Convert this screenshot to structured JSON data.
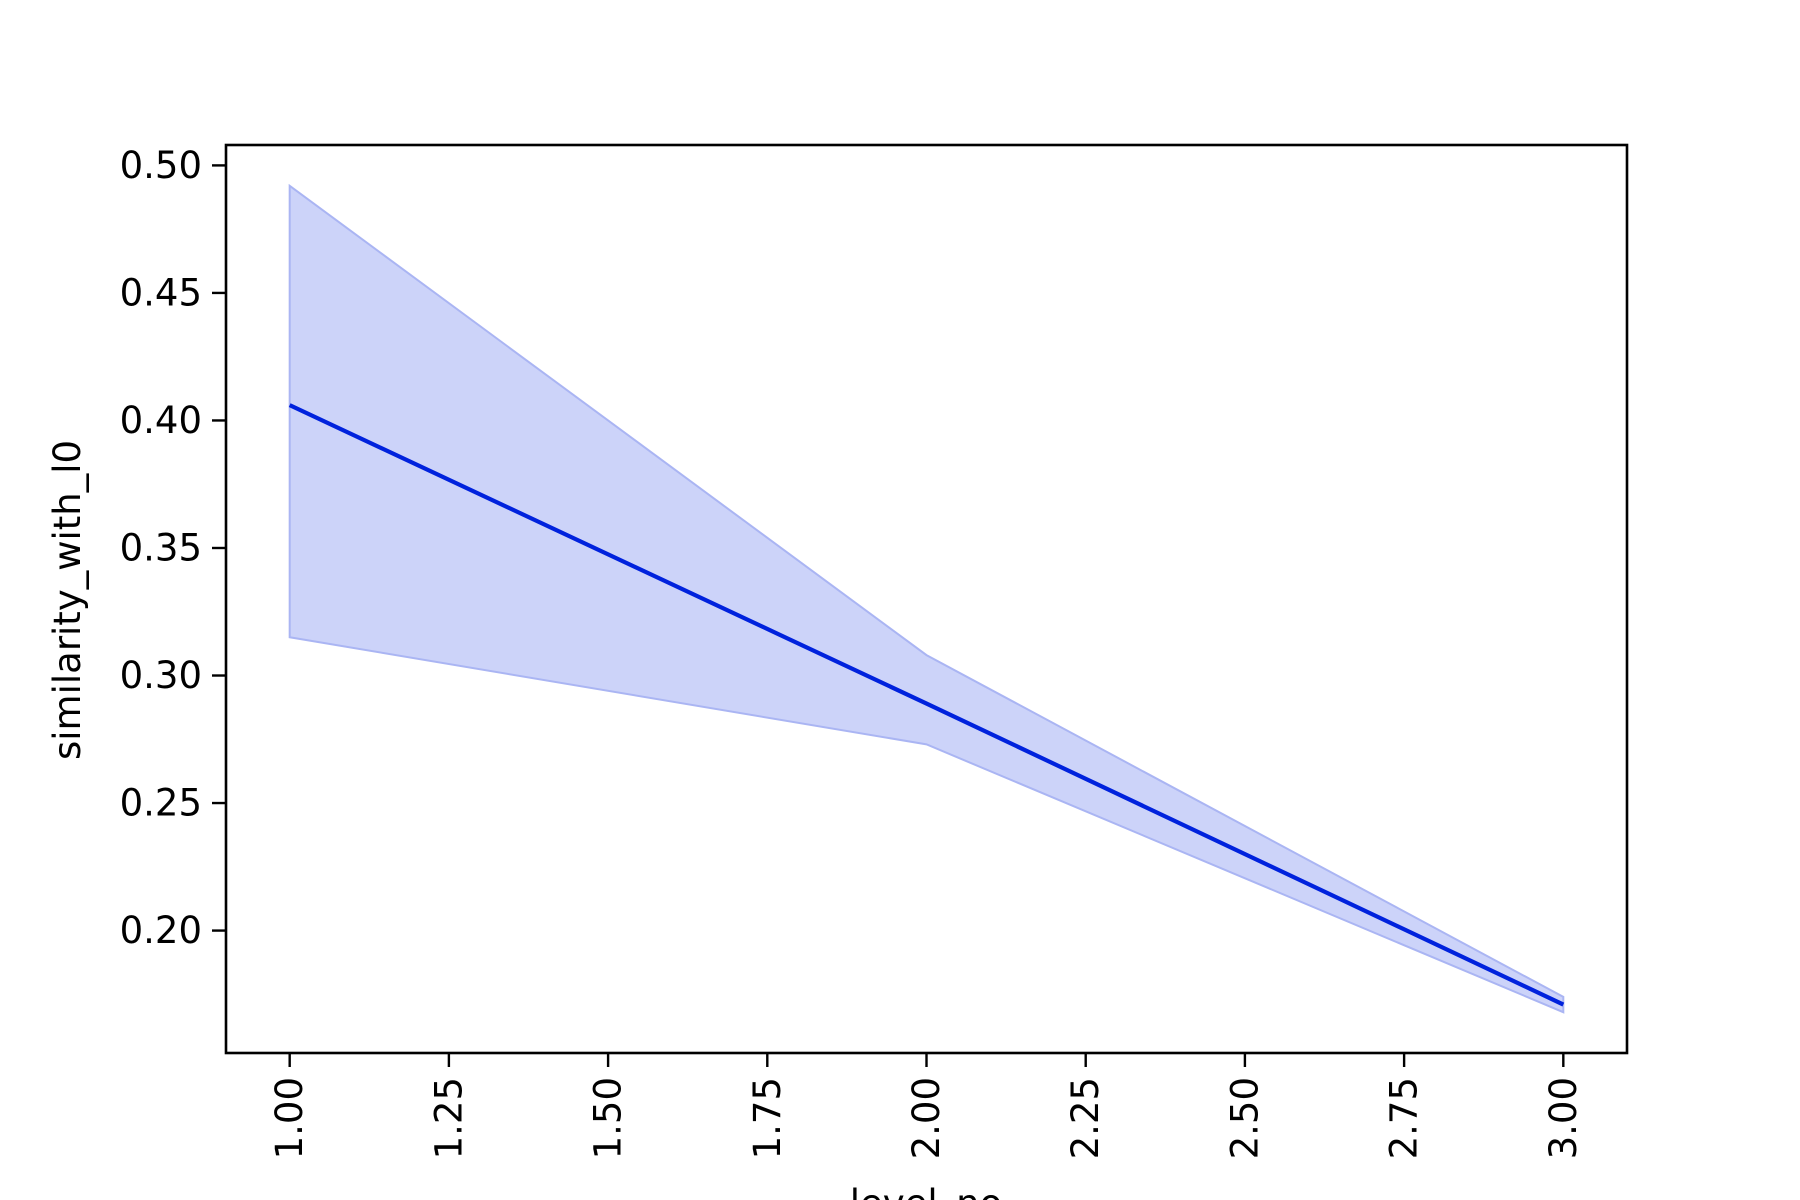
{
  "chart_data": {
    "type": "line",
    "xlabel": "level_no",
    "ylabel": "similarity_with_l0",
    "xlim": [
      0.9,
      3.1
    ],
    "ylim": [
      0.152,
      0.508
    ],
    "x_ticks": [
      "1.00",
      "1.25",
      "1.50",
      "1.75",
      "2.00",
      "2.25",
      "2.50",
      "2.75",
      "3.00"
    ],
    "y_ticks": [
      "0.20",
      "0.25",
      "0.30",
      "0.35",
      "0.40",
      "0.45",
      "0.50"
    ],
    "grid": false,
    "legend": "none",
    "series": [
      {
        "x": [
          1,
          2,
          3
        ],
        "values": [
          0.406,
          0.289,
          0.171
        ],
        "ci_low": [
          0.315,
          0.273,
          0.168
        ],
        "ci_high": [
          0.492,
          0.308,
          0.174
        ],
        "color": "#0022dd",
        "band_color": "#ccd3f9"
      }
    ]
  }
}
